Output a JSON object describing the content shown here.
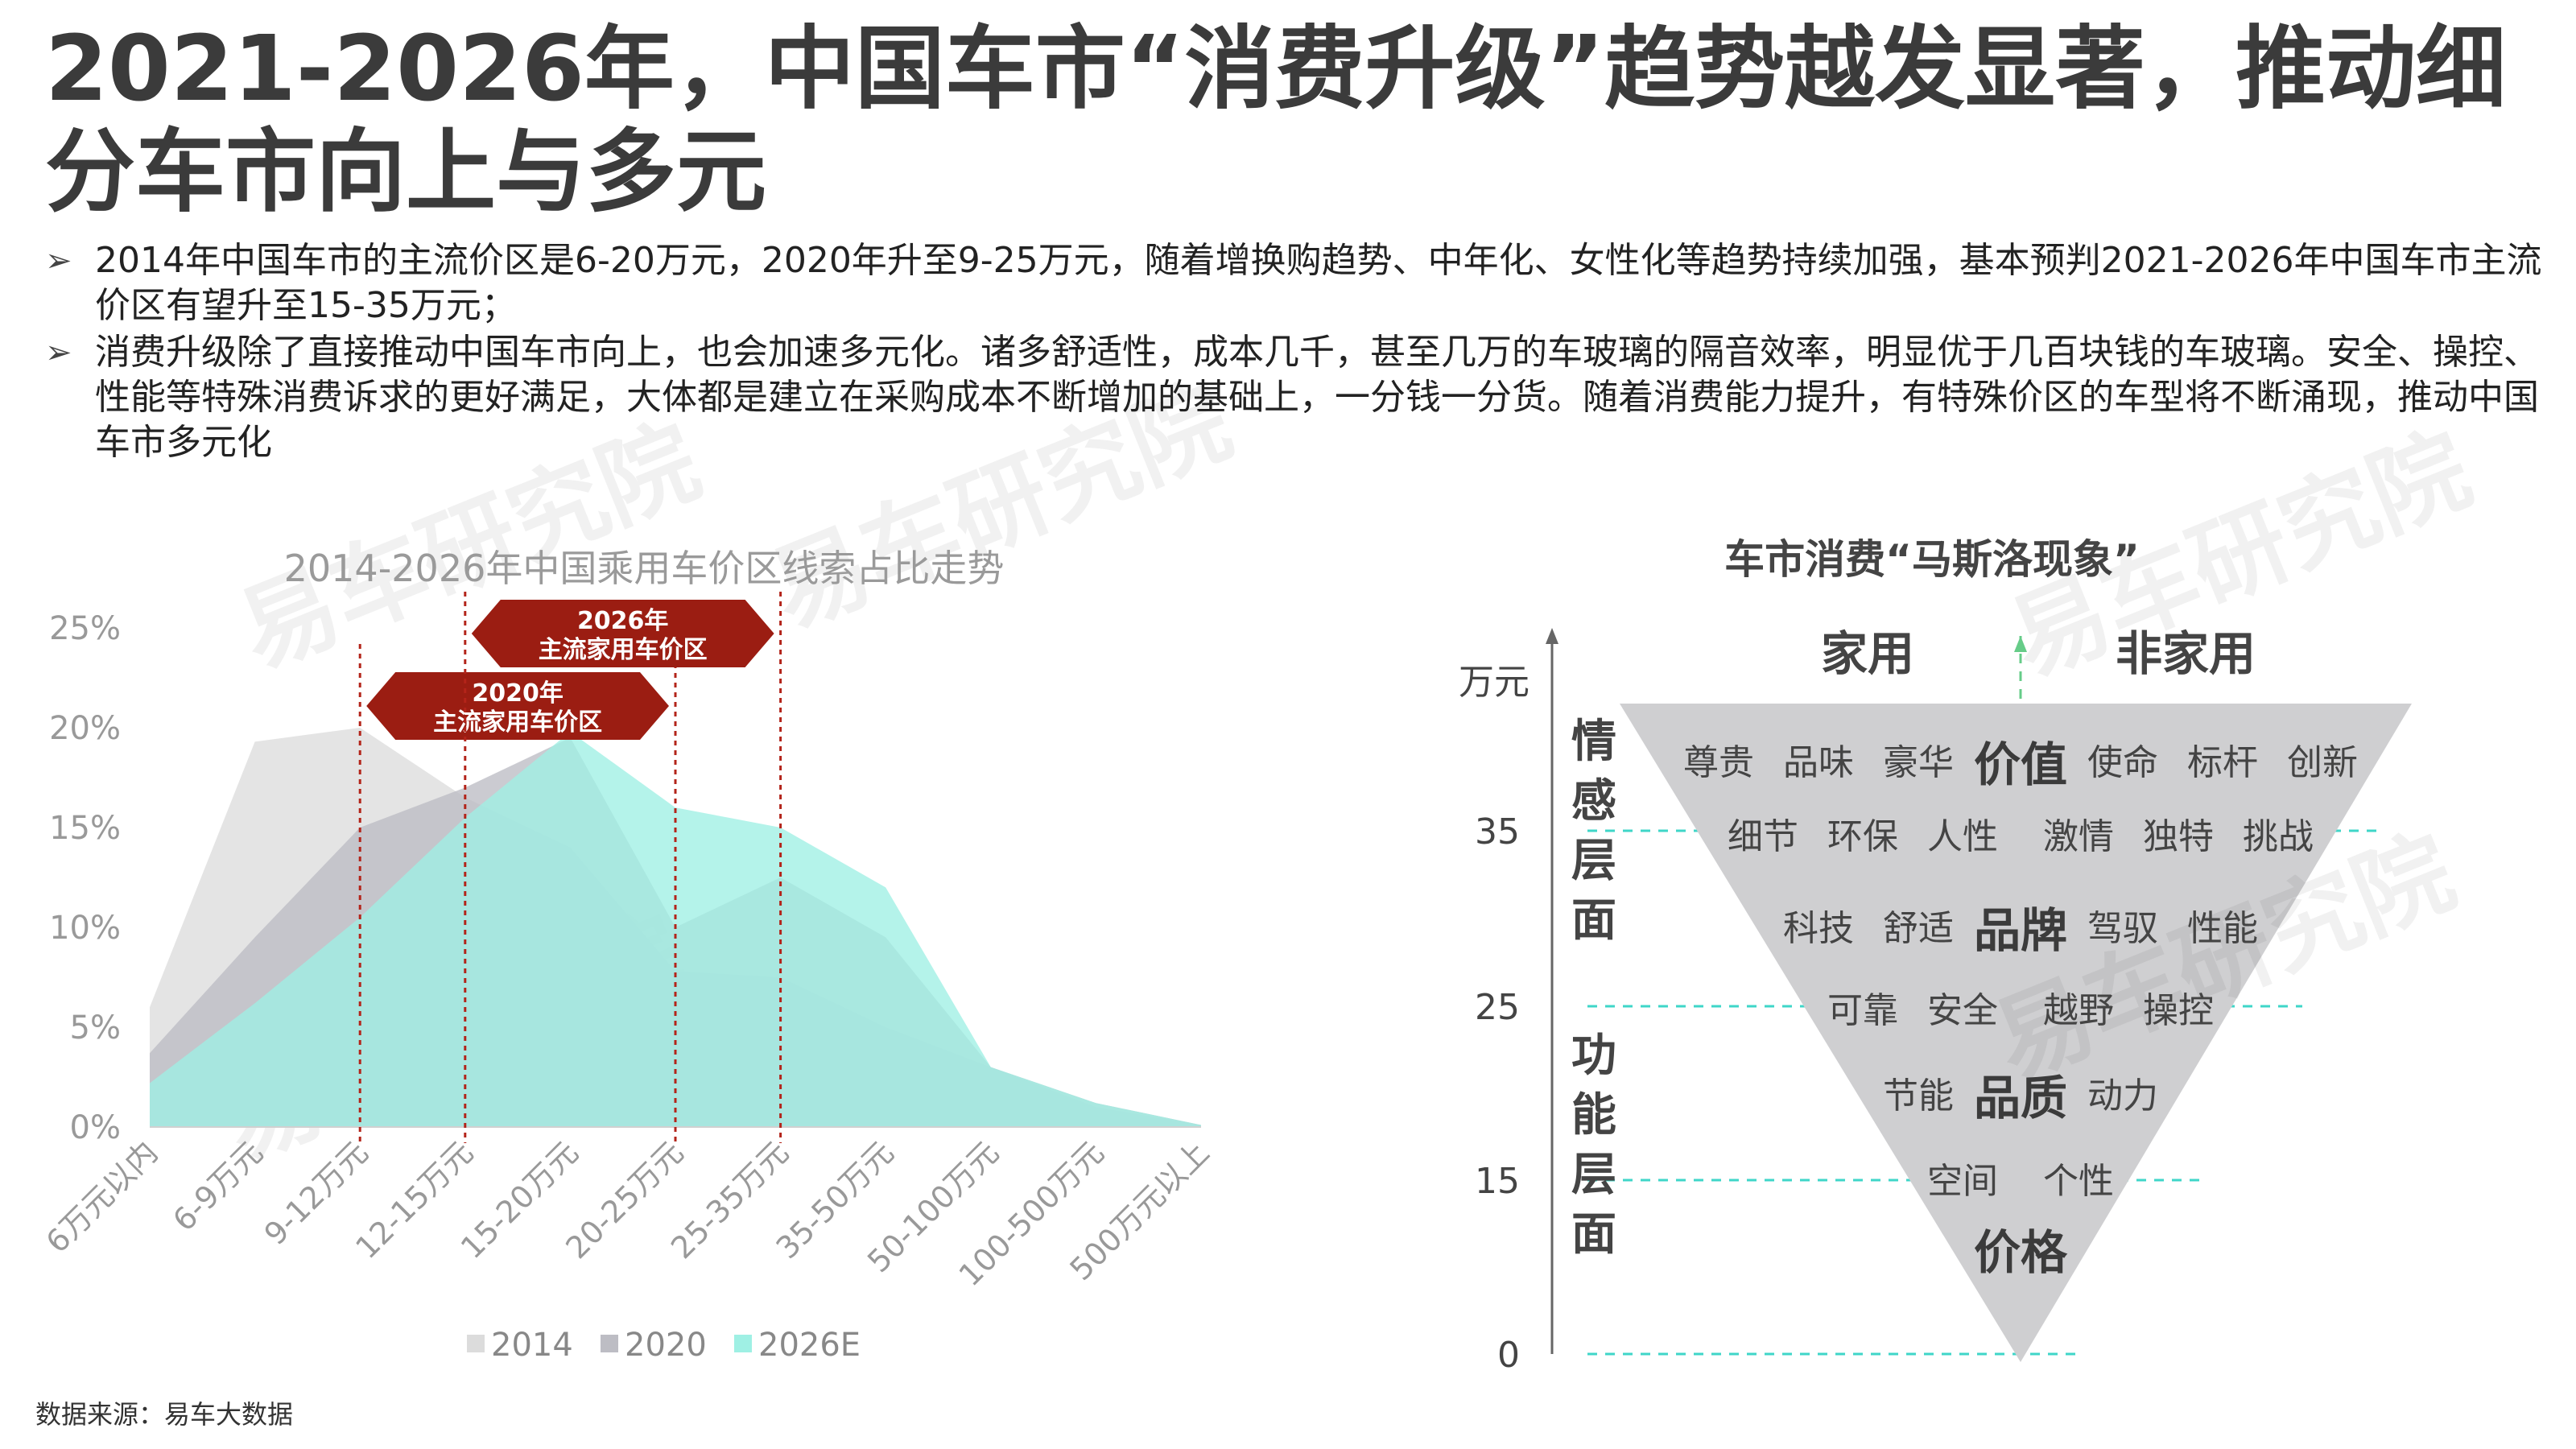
{
  "title": "2021-2026年，中国车市“消费升级”趋势越发显著，推动细分车市向上与多元",
  "bullet_marker": "➢",
  "bullets": [
    "2014年中国车市的主流价区是6-20万元，2020年升至9-25万元，随着增换购趋势、中年化、女性化等趋势持续加强，基本预判2021-2026年中国车市主流价区有望升至15-35万元；",
    "消费升级除了直接推动中国车市向上，也会加速多元化。诸多舒适性，成本几千，甚至几万的车玻璃的隔音效率，明显优于几百块钱的车玻璃。安全、操控、性能等特殊消费诉求的更好满足，大体都是建立在采购成本不断增加的基础上，一分钱一分货。随着消费能力提升，有特殊价区的车型将不断涌现，推动中国车市多元化"
  ],
  "source": "数据来源：易车大数据",
  "watermark": "易车研究院",
  "chart_data": [
    {
      "type": "area",
      "title": "2014-2026年中国乘用车价区线索占比走势",
      "categories": [
        "6万元以内",
        "6-9万元",
        "9-12万元",
        "12-15万元",
        "15-20万元",
        "20-25万元",
        "25-35万元",
        "35-50万元",
        "50-100万元",
        "100-500万元",
        "500万元以上"
      ],
      "yticks": [
        "0%",
        "5%",
        "10%",
        "15%",
        "20%",
        "25%"
      ],
      "ylim": [
        0,
        25
      ],
      "series": [
        {
          "name": "2014",
          "color": "#dcdcdc",
          "values": [
            6,
            19.3,
            20,
            16.5,
            14,
            7.8,
            7.5,
            5,
            3,
            1,
            0.1
          ]
        },
        {
          "name": "2020",
          "color": "#bdbdc4",
          "values": [
            3.7,
            9.5,
            15,
            17,
            19.5,
            10,
            12.5,
            9.5,
            3,
            1.2,
            0.1
          ]
        },
        {
          "name": "2026E",
          "color": "#9ff0e4",
          "values": [
            2.2,
            6.2,
            10.5,
            15.5,
            19.8,
            16,
            15,
            12,
            3,
            1.2,
            0.1
          ]
        }
      ],
      "annotations": [
        {
          "line1": "2020年",
          "line2": "主流家用车价区",
          "range": [
            "9-12万元",
            "20-25万元"
          ]
        },
        {
          "line1": "2026年",
          "line2": "主流家用车价区",
          "range": [
            "12-15万元",
            "25-35万元"
          ]
        }
      ],
      "grid": false,
      "legend": "bottom"
    },
    {
      "type": "diagram",
      "title": "车市消费“马斯洛现象”",
      "y_unit": "万元",
      "y_ticks": [
        "35",
        "25",
        "15",
        "0"
      ],
      "left_header": "家用",
      "right_header": "非家用",
      "emotional_label": "情感层面",
      "functional_label": "功能层面",
      "rows": [
        {
          "left": [
            "尊贵",
            "品味",
            "豪华"
          ],
          "key": "价值",
          "right": [
            "使命",
            "标杆",
            "创新"
          ]
        },
        {
          "left": [
            "细节",
            "环保",
            "人性"
          ],
          "key": "",
          "right": [
            "激情",
            "独特",
            "挑战"
          ]
        },
        {
          "left": [
            "科技",
            "舒适"
          ],
          "key": "品牌",
          "right": [
            "驾驭",
            "性能"
          ]
        },
        {
          "left": [
            "可靠",
            "安全"
          ],
          "key": "",
          "right": [
            "越野",
            "操控"
          ]
        },
        {
          "left": [
            "节能"
          ],
          "key": "品质",
          "right": [
            "动力"
          ]
        },
        {
          "left": [
            "空间"
          ],
          "key": "",
          "right": [
            "个性"
          ]
        },
        {
          "left": [],
          "key": "价格",
          "right": []
        }
      ]
    }
  ]
}
